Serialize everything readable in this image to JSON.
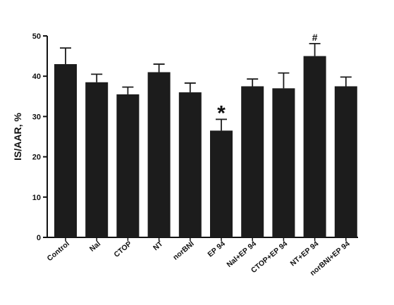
{
  "chart_data": {
    "type": "bar",
    "title": "",
    "xlabel": "",
    "ylabel": "IS/AAR, %",
    "ylim": [
      0,
      50
    ],
    "yticks": [
      0,
      10,
      20,
      30,
      40,
      50
    ],
    "grid": false,
    "categories": [
      "Control",
      "Nal",
      "CTOP",
      "NT",
      "norBNI",
      "EP 94",
      "Nal+EP 94",
      "CTOP+EP 94",
      "NT+EP 94",
      "norBNI+EP 94"
    ],
    "values": [
      43,
      38.5,
      35.5,
      41,
      36,
      26.5,
      37.5,
      37,
      45,
      37.5
    ],
    "errors": [
      4,
      2,
      1.8,
      2,
      2.3,
      2.8,
      1.8,
      3.8,
      3.1,
      2.3
    ],
    "annotations": [
      {
        "category": "EP 94",
        "text": "*"
      },
      {
        "category": "NT+EP 94",
        "text": "#"
      }
    ],
    "colors": {
      "bar": "#1c1c1c",
      "axis": "#111111"
    }
  }
}
